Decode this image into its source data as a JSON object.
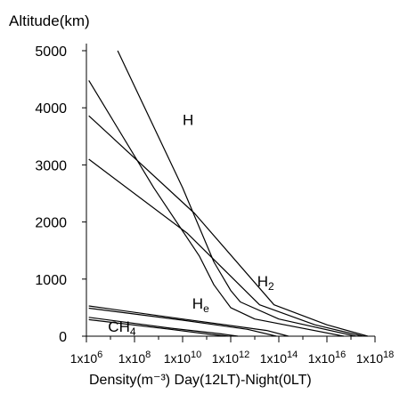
{
  "chart_data": {
    "type": "line",
    "title": "",
    "ylabel": "Altitude(km)",
    "xlabel": "Density(m⁻³) Day(12LT)-Night(0LT)",
    "x_scale": "log",
    "xlim_exp": [
      6,
      18
    ],
    "ylim": [
      0,
      5000
    ],
    "x_tick_labels": [
      {
        "exp": 6,
        "mant": "1x10",
        "sup": "6"
      },
      {
        "exp": 8,
        "mant": "1x10",
        "sup": "8"
      },
      {
        "exp": 10,
        "mant": "1x10",
        "sup": "10"
      },
      {
        "exp": 12,
        "mant": "1x10",
        "sup": "12"
      },
      {
        "exp": 14,
        "mant": "1x10",
        "sup": "14"
      },
      {
        "exp": 16,
        "mant": "1x10",
        "sup": "16"
      },
      {
        "exp": 18,
        "mant": "1x10",
        "sup": "18"
      }
    ],
    "y_ticks": [
      0,
      1000,
      2000,
      3000,
      4000,
      5000
    ],
    "y_tick_labels": [
      "0",
      "1000",
      "2000",
      "3000",
      "4000",
      "5000"
    ],
    "annotations": [
      {
        "name": "H",
        "main": "H",
        "sub": "",
        "x_exp": 10.0,
        "y": 3700
      },
      {
        "name": "H2",
        "main": "H",
        "sub": "2",
        "x_exp": 13.1,
        "y": 870
      },
      {
        "name": "He",
        "main": "H",
        "sub": "e",
        "x_exp": 10.4,
        "y": 480
      },
      {
        "name": "CH4",
        "main": "CH",
        "sub": "4",
        "x_exp": 6.9,
        "y": 80
      }
    ],
    "series": [
      {
        "curve": "h-day",
        "points": [
          [
            7.3,
            5000
          ],
          [
            10.0,
            2600
          ],
          [
            11.3,
            1300
          ],
          [
            12.0,
            800
          ],
          [
            12.4,
            600
          ],
          [
            14.0,
            300
          ],
          [
            17.2,
            0
          ]
        ]
      },
      {
        "curve": "h-night",
        "points": [
          [
            6.1,
            4480
          ],
          [
            8.8,
            2600
          ],
          [
            10.7,
            1400
          ],
          [
            11.3,
            900
          ],
          [
            12.0,
            500
          ],
          [
            13.0,
            300
          ],
          [
            16.7,
            0
          ]
        ]
      },
      {
        "curve": "h2-day",
        "points": [
          [
            6.1,
            3860
          ],
          [
            10.5,
            2150
          ],
          [
            13.8,
            550
          ],
          [
            16.0,
            200
          ],
          [
            17.7,
            0
          ]
        ]
      },
      {
        "curve": "h2-night",
        "points": [
          [
            6.1,
            3100
          ],
          [
            10.2,
            1800
          ],
          [
            13.2,
            550
          ],
          [
            15.5,
            200
          ],
          [
            17.5,
            0
          ]
        ]
      },
      {
        "curve": "he-day",
        "points": [
          [
            6.1,
            530
          ],
          [
            10.0,
            300
          ],
          [
            13.5,
            100
          ],
          [
            14.4,
            0
          ]
        ]
      },
      {
        "curve": "he-night",
        "points": [
          [
            6.1,
            490
          ],
          [
            10.0,
            280
          ],
          [
            12.7,
            120
          ],
          [
            13.9,
            0
          ]
        ]
      },
      {
        "curve": "ch4-day",
        "points": [
          [
            6.1,
            330
          ],
          [
            9.5,
            140
          ],
          [
            11.6,
            40
          ],
          [
            12.3,
            0
          ]
        ]
      },
      {
        "curve": "ch4-night",
        "points": [
          [
            6.1,
            290
          ],
          [
            9.5,
            120
          ],
          [
            11.2,
            30
          ],
          [
            11.9,
            0
          ]
        ]
      }
    ]
  }
}
